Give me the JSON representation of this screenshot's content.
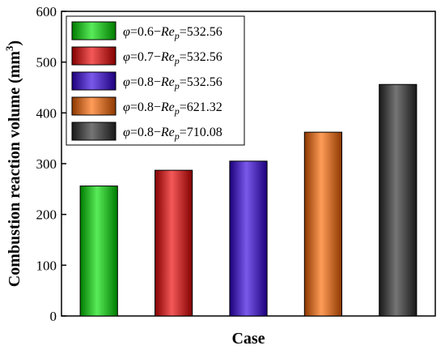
{
  "chart_data": {
    "type": "bar",
    "categories": [
      "",
      "",
      "",
      "",
      ""
    ],
    "values": [
      256,
      287,
      305,
      362,
      456
    ],
    "series": [
      {
        "name": "φ=0.6−Rep=532.56",
        "value": 256,
        "color": "#00e000",
        "legend": {
          "phi": "0.6",
          "re": "532.56"
        }
      },
      {
        "name": "φ=0.7−Rep=532.56",
        "value": 287,
        "color": "#ee0000",
        "legend": {
          "phi": "0.7",
          "re": "532.56"
        }
      },
      {
        "name": "φ=0.8−Rep=532.56",
        "value": 305,
        "color": "#3300e0",
        "legend": {
          "phi": "0.8",
          "re": "532.56"
        }
      },
      {
        "name": "φ=0.8−Rep=621.32",
        "value": 362,
        "color": "#ff6600",
        "legend": {
          "phi": "0.8",
          "re": "621.32"
        }
      },
      {
        "name": "φ=0.8−Rep=710.08",
        "value": 456,
        "color": "#2b2b2b",
        "legend": {
          "phi": "0.8",
          "re": "710.08"
        }
      }
    ],
    "xlabel": "Case",
    "ylabel": "Combustion reaction volume (mm3)",
    "ylabel_parts": {
      "text": "Combustion reaction volume (mm",
      "sup": "3",
      "close": ")"
    },
    "ylim": [
      0,
      600
    ],
    "yticks": [
      0,
      100,
      200,
      300,
      400,
      500,
      600
    ],
    "legend_placement": "top-left",
    "grid": false
  }
}
